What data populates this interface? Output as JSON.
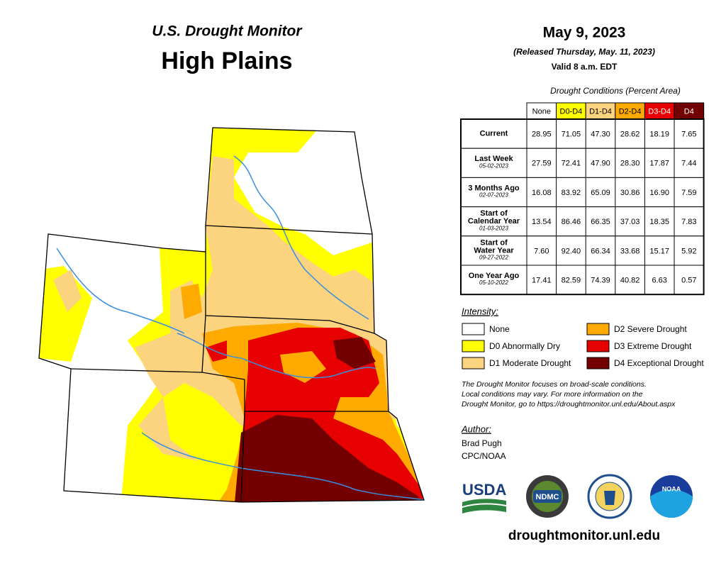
{
  "header": {
    "product": "U.S. Drought Monitor",
    "region": "High Plains",
    "date": "May 9, 2023",
    "released": "(Released Thursday, May. 11, 2023)",
    "valid": "Valid 8 a.m. EDT"
  },
  "table": {
    "caption": "Drought Conditions (Percent Area)",
    "columns": [
      {
        "label": "None",
        "color": "#ffffff",
        "text_color": "#000000"
      },
      {
        "label": "D0-D4",
        "color": "#ffff00",
        "text_color": "#000000"
      },
      {
        "label": "D1-D4",
        "color": "#fcd37f",
        "text_color": "#000000"
      },
      {
        "label": "D2-D4",
        "color": "#ffaa00",
        "text_color": "#000000"
      },
      {
        "label": "D3-D4",
        "color": "#e60000",
        "text_color": "#ffffff"
      },
      {
        "label": "D4",
        "color": "#730000",
        "text_color": "#ffffff"
      }
    ],
    "rows": [
      {
        "label": [
          "Current"
        ],
        "values": [
          "28.95",
          "71.05",
          "47.30",
          "28.62",
          "18.19",
          "7.65"
        ]
      },
      {
        "label": [
          "Last Week"
        ],
        "date": "05-02-2023",
        "values": [
          "27.59",
          "72.41",
          "47.90",
          "28.30",
          "17.87",
          "7.44"
        ]
      },
      {
        "label": [
          "3 Months Ago"
        ],
        "date": "02-07-2023",
        "values": [
          "16.08",
          "83.92",
          "65.09",
          "30.86",
          "16.90",
          "7.59"
        ]
      },
      {
        "label": [
          "Start of",
          "Calendar Year"
        ],
        "date": "01-03-2023",
        "values": [
          "13.54",
          "86.46",
          "66.35",
          "37.03",
          "18.35",
          "7.83"
        ]
      },
      {
        "label": [
          "Start of",
          "Water Year"
        ],
        "date": "09-27-2022",
        "values": [
          "7.60",
          "92.40",
          "66.34",
          "33.68",
          "15.17",
          "5.92"
        ]
      },
      {
        "label": [
          "One Year Ago"
        ],
        "date": "05-10-2022",
        "values": [
          "17.41",
          "82.59",
          "74.39",
          "40.82",
          "6.63",
          "0.57"
        ]
      }
    ]
  },
  "legend": {
    "title": "Intensity:",
    "items": [
      {
        "label": "None",
        "color": "#ffffff"
      },
      {
        "label": "D0 Abnormally Dry",
        "color": "#ffff00"
      },
      {
        "label": "D1 Moderate Drought",
        "color": "#fcd37f"
      },
      {
        "label": "D2 Severe Drought",
        "color": "#ffaa00"
      },
      {
        "label": "D3 Extreme Drought",
        "color": "#e60000"
      },
      {
        "label": "D4 Exceptional Drought",
        "color": "#730000"
      }
    ]
  },
  "note": [
    "The Drought Monitor focuses on broad-scale conditions.",
    "Local conditions may vary. For more information on the",
    "Drought Monitor, go to https://droughtmonitor.unl.edu/About.aspx"
  ],
  "author": {
    "title": "Author:",
    "lines": [
      "Brad Pugh",
      "CPC/NOAA"
    ]
  },
  "logos": [
    "USDA",
    "NDMC",
    "NOAA"
  ],
  "url": "droughtmonitor.unl.edu"
}
